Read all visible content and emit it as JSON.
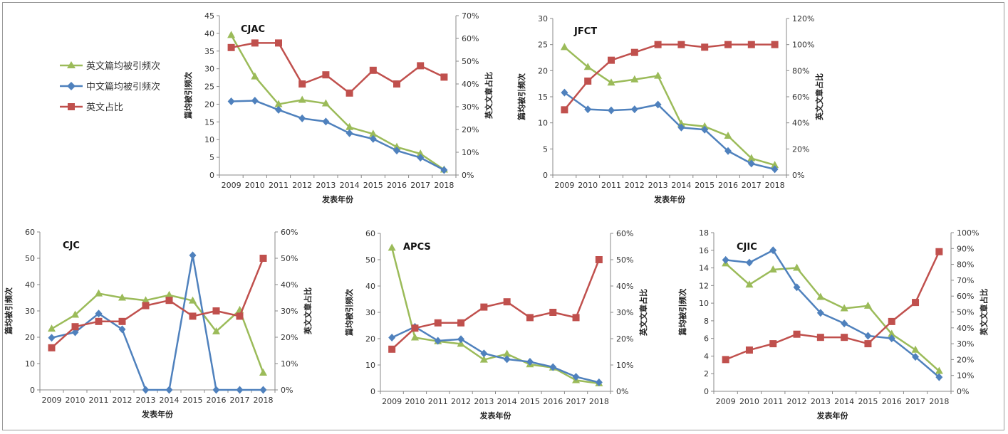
{
  "legend": [
    {
      "label": "英文篇均被引频次",
      "color": "#9bbb59",
      "marker": "triangle"
    },
    {
      "label": "中文篇均被引频次",
      "color": "#4f81bd",
      "marker": "diamond"
    },
    {
      "label": "英文占比",
      "color": "#c0504d",
      "marker": "square"
    }
  ],
  "chart_data": [
    {
      "type": "line",
      "title": "CJAC",
      "xlabel": "发表年份",
      "ylabel": "篇均被引频次",
      "y2label": "英文文章占比",
      "x": [
        "2009",
        "2010",
        "2011",
        "2012",
        "2013",
        "2014",
        "2015",
        "2016",
        "2017",
        "2018"
      ],
      "ylim": [
        0,
        45
      ],
      "yticks": [
        0,
        5,
        10,
        15,
        20,
        25,
        30,
        35,
        40,
        45
      ],
      "y2lim": [
        0,
        70
      ],
      "y2ticks": [
        0,
        10,
        20,
        30,
        40,
        50,
        60,
        70
      ],
      "series": [
        {
          "name": "英文篇均被引频次",
          "axis": "left",
          "color": "#9bbb59",
          "marker": "triangle",
          "values": [
            39.5,
            27.8,
            20.0,
            21.2,
            20.2,
            13.5,
            11.6,
            7.9,
            6.0,
            1.5
          ]
        },
        {
          "name": "中文篇均被引频次",
          "axis": "left",
          "color": "#4f81bd",
          "marker": "diamond",
          "values": [
            20.8,
            21.0,
            18.4,
            16.0,
            15.1,
            11.8,
            10.2,
            6.9,
            4.9,
            1.4
          ]
        },
        {
          "name": "英文占比",
          "axis": "right",
          "color": "#c0504d",
          "marker": "square",
          "values": [
            56,
            58,
            58,
            40,
            44,
            36,
            46,
            40,
            48,
            43
          ]
        }
      ]
    },
    {
      "type": "line",
      "title": "JFCT",
      "xlabel": "发表年份",
      "ylabel": "篇均被引频次",
      "y2label": "英文文章占比",
      "x": [
        "2009",
        "2010",
        "2011",
        "2012",
        "2013",
        "2014",
        "2015",
        "2016",
        "2017",
        "2018"
      ],
      "ylim": [
        0,
        30
      ],
      "yticks": [
        0,
        5,
        10,
        15,
        20,
        25,
        30
      ],
      "y2lim": [
        0,
        120
      ],
      "y2ticks": [
        0,
        20,
        40,
        60,
        80,
        100,
        120
      ],
      "series": [
        {
          "name": "英文篇均被引频次",
          "axis": "left",
          "color": "#9bbb59",
          "marker": "triangle",
          "values": [
            24.5,
            20.7,
            17.7,
            18.3,
            19.0,
            9.8,
            9.3,
            7.5,
            3.2,
            1.9
          ]
        },
        {
          "name": "中文篇均被引频次",
          "axis": "left",
          "color": "#4f81bd",
          "marker": "diamond",
          "values": [
            15.8,
            12.6,
            12.4,
            12.6,
            13.5,
            9.1,
            8.7,
            4.6,
            2.2,
            1.1
          ]
        },
        {
          "name": "英文占比",
          "axis": "right",
          "color": "#c0504d",
          "marker": "square",
          "values": [
            50,
            72,
            88,
            94,
            100,
            100,
            98,
            100,
            100,
            100
          ]
        }
      ]
    },
    {
      "type": "line",
      "title": "CJC",
      "xlabel": "发表年份",
      "ylabel": "篇均被引频次",
      "y2label": "英文文章占比",
      "x": [
        "2009",
        "2010",
        "2011",
        "2012",
        "2013",
        "2014",
        "2015",
        "2016",
        "2017",
        "2018"
      ],
      "ylim": [
        0,
        60
      ],
      "yticks": [
        0,
        10,
        20,
        30,
        40,
        50,
        60
      ],
      "y2lim": [
        0,
        60
      ],
      "y2ticks": [
        0,
        10,
        20,
        30,
        40,
        50,
        60
      ],
      "series": [
        {
          "name": "英文篇均被引频次",
          "axis": "left",
          "color": "#9bbb59",
          "marker": "triangle",
          "values": [
            23.2,
            28.5,
            36.6,
            35.0,
            34.0,
            36.0,
            33.9,
            22.2,
            30.3,
            6.5
          ]
        },
        {
          "name": "中文篇均被引频次",
          "axis": "left",
          "color": "#4f81bd",
          "marker": "diamond",
          "values": [
            19.8,
            21.9,
            29.0,
            23.0,
            0,
            0,
            51.1,
            0,
            0,
            0
          ]
        },
        {
          "name": "英文占比",
          "axis": "right",
          "color": "#c0504d",
          "marker": "square",
          "values": [
            16,
            24,
            26,
            26,
            32,
            34,
            28,
            30,
            28,
            50
          ]
        }
      ]
    },
    {
      "type": "line",
      "title": "APCS",
      "xlabel": "发表年份",
      "ylabel": "篇均被引频次",
      "y2label": "英文文章占比",
      "x": [
        "2009",
        "2010",
        "2011",
        "2012",
        "2013",
        "2014",
        "2015",
        "2016",
        "2017",
        "2018"
      ],
      "ylim": [
        0,
        60
      ],
      "yticks": [
        0,
        10,
        20,
        30,
        40,
        50,
        60
      ],
      "y2lim": [
        0,
        60
      ],
      "y2ticks": [
        0,
        10,
        20,
        30,
        40,
        50,
        60
      ],
      "series": [
        {
          "name": "英文篇均被引频次",
          "axis": "left",
          "color": "#9bbb59",
          "marker": "triangle",
          "values": [
            54.5,
            20.4,
            19.0,
            18.0,
            12.0,
            14.2,
            10.2,
            9.0,
            4.2,
            3.0
          ]
        },
        {
          "name": "中文篇均被引频次",
          "axis": "left",
          "color": "#4f81bd",
          "marker": "diamond",
          "values": [
            20.4,
            24.5,
            19.2,
            19.8,
            14.4,
            12.2,
            11.2,
            9.2,
            5.5,
            3.4
          ]
        },
        {
          "name": "英文占比",
          "axis": "right",
          "color": "#c0504d",
          "marker": "square",
          "values": [
            16,
            24,
            26,
            26,
            32,
            34,
            28,
            30,
            28,
            50
          ]
        }
      ]
    },
    {
      "type": "line",
      "title": "CJIC",
      "xlabel": "发表年份",
      "ylabel": "篇均被引频次",
      "y2label": "英文文章占比",
      "x": [
        "2009",
        "2010",
        "2011",
        "2012",
        "2013",
        "2014",
        "2015",
        "2016",
        "2017",
        "2018"
      ],
      "ylim": [
        0,
        18
      ],
      "yticks": [
        0,
        2,
        4,
        6,
        8,
        10,
        12,
        14,
        16,
        18
      ],
      "y2lim": [
        0,
        100
      ],
      "y2ticks": [
        0,
        10,
        20,
        30,
        40,
        50,
        60,
        70,
        80,
        90,
        100
      ],
      "series": [
        {
          "name": "英文篇均被引频次",
          "axis": "left",
          "color": "#9bbb59",
          "marker": "triangle",
          "values": [
            14.5,
            12.1,
            13.8,
            14.0,
            10.7,
            9.4,
            9.7,
            6.5,
            4.7,
            2.3
          ]
        },
        {
          "name": "中文篇均被引频次",
          "axis": "left",
          "color": "#4f81bd",
          "marker": "diamond",
          "values": [
            14.9,
            14.6,
            16.0,
            11.8,
            8.9,
            7.7,
            6.3,
            6.0,
            3.9,
            1.6
          ]
        },
        {
          "name": "英文占比",
          "axis": "right",
          "color": "#c0504d",
          "marker": "square",
          "values": [
            20,
            26,
            30,
            36,
            34,
            34,
            30,
            44,
            56,
            88
          ]
        }
      ]
    }
  ]
}
